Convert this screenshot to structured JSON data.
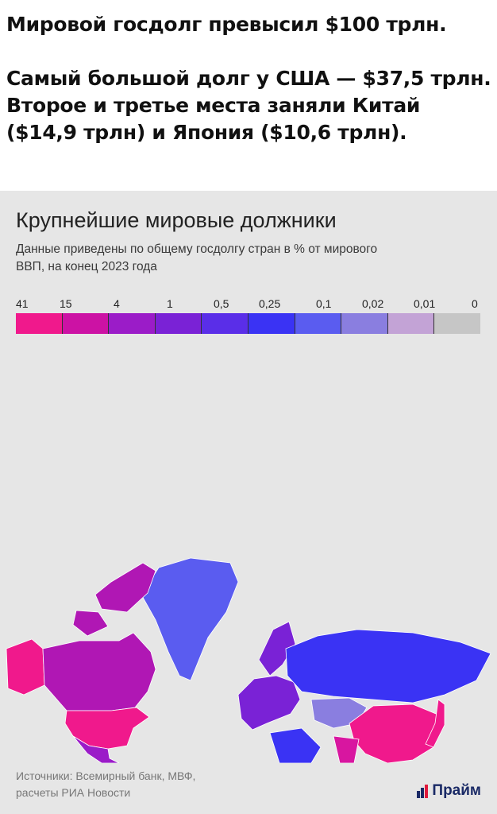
{
  "headline": {
    "line1": "Мировой госдолг превысил $100 трлн.",
    "line2": "Самый большой долг у США — $37,5 трлн.",
    "line3": "Второе и третье места заняли Китай",
    "line4": "($14,9 трлн) и Япония ($10,6 трлн)."
  },
  "chart": {
    "title": "Крупнейшие мировые должники",
    "subtitle_line1": "Данные приведены по общему госдолгу стран в % от мирового",
    "subtitle_line2": "ВВП, на конец 2023 года"
  },
  "legend": {
    "labels": [
      "41",
      "15",
      "4",
      "1",
      "0,5",
      "0,25",
      "0,1",
      "0,02",
      "0,01",
      "0"
    ],
    "colors": [
      "#f0198c",
      "#cc12a4",
      "#9b1cc8",
      "#7a22d6",
      "#5a2ee8",
      "#3a33f4",
      "#5a5cf0",
      "#8a7ee0",
      "#c3a3d6",
      "#c6c6c6"
    ]
  },
  "map_colors": {
    "usa": "#f0198c",
    "china": "#f0198c",
    "japan": "#f0198c",
    "canada": "#b017b4",
    "russia": "#3a33f4",
    "greenland": "#5a5cf0",
    "brazil": "#9b1cc8",
    "india": "#d816a0",
    "europe": "#7a22d6",
    "australia": "#5a2ee8",
    "africa": "#8a7ee0",
    "mexico": "#9b1cc8",
    "middle_east": "#3a33f4",
    "kazakhstan": "#8a7ee0"
  },
  "sources": {
    "line1": "Источники: Всемирный банк, МВФ,",
    "line2": "расчеты РИА Новости"
  },
  "logo": {
    "text": "Прайм",
    "color": "#1a2a66",
    "accent": "#e0193c"
  }
}
